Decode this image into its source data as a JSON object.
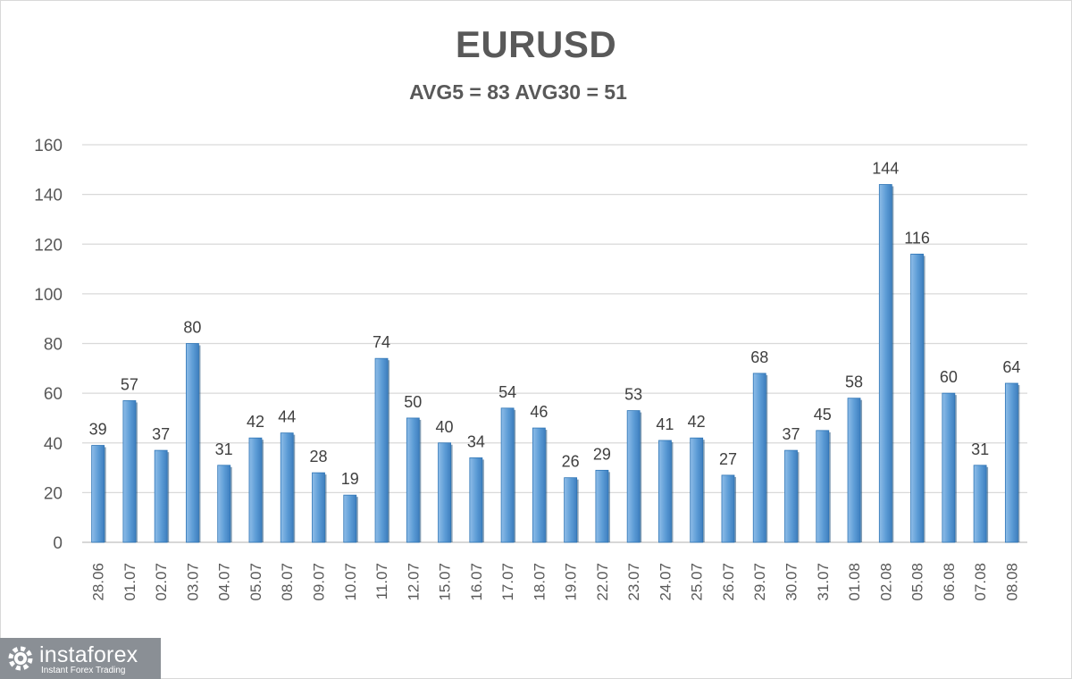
{
  "chart_data": {
    "type": "bar",
    "title": "EURUSD",
    "subtitle": "AVG5 = 83 AVG30 = 51",
    "categories": [
      "28.06",
      "01.07",
      "02.07",
      "03.07",
      "04.07",
      "05.07",
      "08.07",
      "09.07",
      "10.07",
      "11.07",
      "12.07",
      "15.07",
      "16.07",
      "17.07",
      "18.07",
      "19.07",
      "22.07",
      "23.07",
      "24.07",
      "25.07",
      "26.07",
      "29.07",
      "30.07",
      "31.07",
      "01.08",
      "02.08",
      "05.08",
      "06.08",
      "07.08",
      "08.08"
    ],
    "values": [
      39,
      57,
      37,
      80,
      31,
      42,
      44,
      28,
      19,
      74,
      50,
      40,
      34,
      54,
      46,
      26,
      29,
      53,
      41,
      42,
      27,
      68,
      37,
      45,
      58,
      144,
      116,
      60,
      31,
      64
    ],
    "yticks": [
      0,
      20,
      40,
      60,
      80,
      100,
      120,
      140,
      160
    ],
    "ylim": [
      0,
      160
    ],
    "grid": true,
    "legend": "none",
    "bar_color": "#5b9bd5",
    "bar_dark_color": "#2e75b6"
  },
  "watermark": {
    "name": "instaforex",
    "tagline": "Instant Forex Trading"
  }
}
